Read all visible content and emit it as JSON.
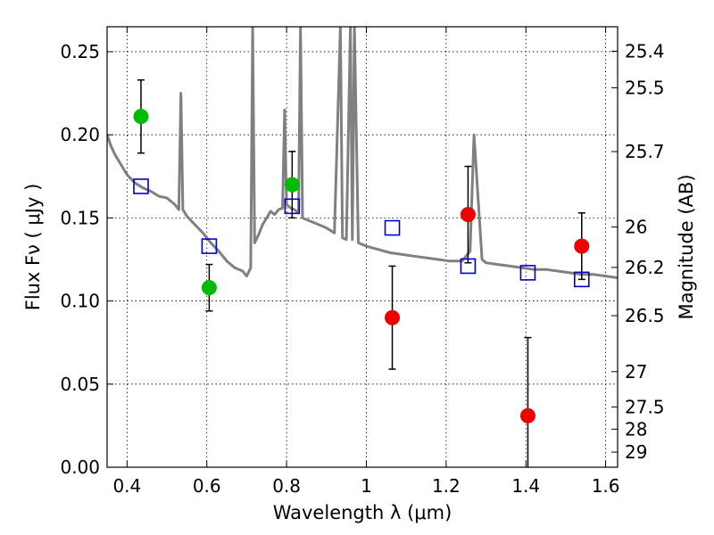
{
  "chart_data": {
    "type": "scatter",
    "xlabel": "Wavelength  λ (μm)",
    "ylabel": "Flux  Fν  ( μJy )",
    "y2label": "Magnitude (AB)",
    "xlim": [
      0.35,
      1.63
    ],
    "ylim": [
      0,
      0.265
    ],
    "grid": true,
    "x_ticks": [
      0.4,
      0.6,
      0.8,
      1.0,
      1.2,
      1.4,
      1.6
    ],
    "x_tick_labels": [
      "0.4",
      "0.6",
      "0.8",
      "1",
      "1.2",
      "1.4",
      "1.6"
    ],
    "y_ticks": [
      0.0,
      0.05,
      0.1,
      0.15,
      0.2,
      0.25
    ],
    "y_tick_labels": [
      "0.00",
      "0.05",
      "0.10",
      "0.15",
      "0.20",
      "0.25"
    ],
    "y2_ticks": [
      {
        "label": "25.4",
        "flux": 0.2503
      },
      {
        "label": "25.5",
        "flux": 0.2283
      },
      {
        "label": "25.7",
        "flux": 0.1899
      },
      {
        "label": "26",
        "flux": 0.1445
      },
      {
        "label": "26.2",
        "flux": 0.1202
      },
      {
        "label": "26.5",
        "flux": 0.0912
      },
      {
        "label": "27",
        "flux": 0.0575
      },
      {
        "label": "27.5",
        "flux": 0.0363
      },
      {
        "label": "28",
        "flux": 0.0229
      },
      {
        "label": "29",
        "flux": 0.0091
      }
    ],
    "series": [
      {
        "marker": "circle",
        "color": "#00bb00",
        "points": [
          {
            "x": 0.435,
            "y": 0.211,
            "yerr": 0.022
          },
          {
            "x": 0.606,
            "y": 0.108,
            "yerr": 0.014
          },
          {
            "x": 0.814,
            "y": 0.17,
            "yerr": 0.02
          }
        ]
      },
      {
        "marker": "circle",
        "color": "#ee0000",
        "points": [
          {
            "x": 1.065,
            "y": 0.09,
            "yerr": 0.031
          },
          {
            "x": 1.255,
            "y": 0.152,
            "yerr": 0.029
          },
          {
            "x": 1.405,
            "y": 0.031,
            "yerr": 0.047
          },
          {
            "x": 1.54,
            "y": 0.133,
            "yerr": 0.02
          }
        ]
      },
      {
        "marker": "open-square",
        "color": "#0000cc",
        "points": [
          {
            "x": 0.435,
            "y": 0.169
          },
          {
            "x": 0.606,
            "y": 0.133
          },
          {
            "x": 0.814,
            "y": 0.157
          },
          {
            "x": 1.065,
            "y": 0.144
          },
          {
            "x": 1.255,
            "y": 0.121
          },
          {
            "x": 1.405,
            "y": 0.117
          },
          {
            "x": 1.54,
            "y": 0.113
          }
        ]
      },
      {
        "type": "line",
        "color": "#808080",
        "points": [
          [
            0.35,
            0.2
          ],
          [
            0.36,
            0.193
          ],
          [
            0.37,
            0.188
          ],
          [
            0.38,
            0.184
          ],
          [
            0.39,
            0.18
          ],
          [
            0.4,
            0.176
          ],
          [
            0.42,
            0.171
          ],
          [
            0.44,
            0.168
          ],
          [
            0.46,
            0.166
          ],
          [
            0.48,
            0.163
          ],
          [
            0.5,
            0.162
          ],
          [
            0.52,
            0.158
          ],
          [
            0.53,
            0.155
          ],
          [
            0.535,
            0.225
          ],
          [
            0.54,
            0.155
          ],
          [
            0.55,
            0.151
          ],
          [
            0.57,
            0.146
          ],
          [
            0.59,
            0.141
          ],
          [
            0.61,
            0.135
          ],
          [
            0.63,
            0.13
          ],
          [
            0.65,
            0.124
          ],
          [
            0.67,
            0.12
          ],
          [
            0.69,
            0.118
          ],
          [
            0.7,
            0.115
          ],
          [
            0.71,
            0.12
          ],
          [
            0.715,
            0.265
          ],
          [
            0.72,
            0.135
          ],
          [
            0.73,
            0.14
          ],
          [
            0.74,
            0.146
          ],
          [
            0.75,
            0.15
          ],
          [
            0.76,
            0.154
          ],
          [
            0.77,
            0.152
          ],
          [
            0.78,
            0.155
          ],
          [
            0.79,
            0.156
          ],
          [
            0.795,
            0.215
          ],
          [
            0.8,
            0.158
          ],
          [
            0.81,
            0.156
          ],
          [
            0.82,
            0.155
          ],
          [
            0.83,
            0.153
          ],
          [
            0.835,
            0.265
          ],
          [
            0.84,
            0.15
          ],
          [
            0.86,
            0.148
          ],
          [
            0.88,
            0.146
          ],
          [
            0.9,
            0.144
          ],
          [
            0.92,
            0.141
          ],
          [
            0.935,
            0.265
          ],
          [
            0.94,
            0.138
          ],
          [
            0.95,
            0.137
          ],
          [
            0.96,
            0.265
          ],
          [
            0.965,
            0.137
          ],
          [
            0.97,
            0.265
          ],
          [
            0.98,
            0.135
          ],
          [
            1.0,
            0.133
          ],
          [
            1.03,
            0.131
          ],
          [
            1.06,
            0.129
          ],
          [
            1.09,
            0.128
          ],
          [
            1.12,
            0.127
          ],
          [
            1.15,
            0.126
          ],
          [
            1.18,
            0.125
          ],
          [
            1.21,
            0.124
          ],
          [
            1.24,
            0.124
          ],
          [
            1.26,
            0.13
          ],
          [
            1.27,
            0.2
          ],
          [
            1.29,
            0.125
          ],
          [
            1.3,
            0.123
          ],
          [
            1.33,
            0.122
          ],
          [
            1.36,
            0.121
          ],
          [
            1.39,
            0.12
          ],
          [
            1.42,
            0.119
          ],
          [
            1.45,
            0.119
          ],
          [
            1.48,
            0.118
          ],
          [
            1.51,
            0.117
          ],
          [
            1.54,
            0.116
          ],
          [
            1.57,
            0.116
          ],
          [
            1.6,
            0.115
          ],
          [
            1.63,
            0.114
          ]
        ]
      }
    ]
  }
}
